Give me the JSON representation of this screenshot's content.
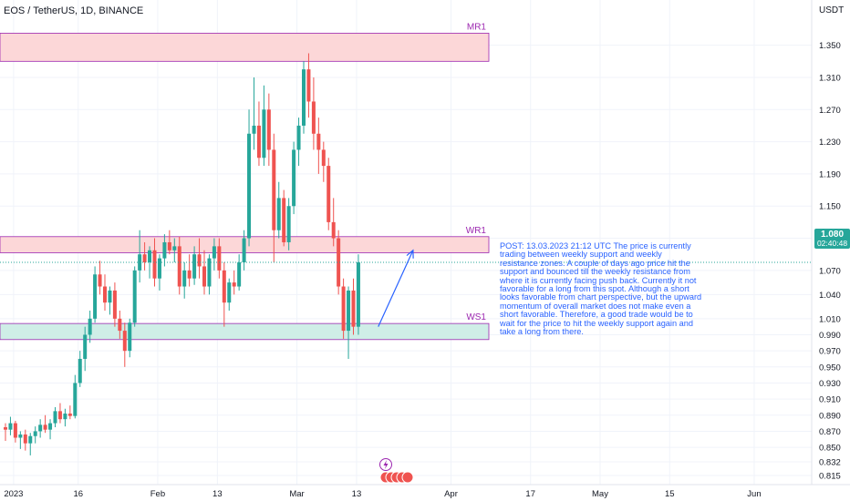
{
  "header": {
    "title": "EOS / TetherUS, 1D, BINANCE",
    "currency": "USDT"
  },
  "price_badge": {
    "price": "1.080",
    "countdown": "02:40:48"
  },
  "annotation_text": "POST: 13.03.2023 21:12 UTC The price is currently trading between weekly support and weekly resistance zones. A couple of days ago price hit the support and bounced till the weekly resistance from where it is currently facing push back. Currently it not favorable for a long from this spot. Although a short looks favorable from chart perspective, but the upward momentum of overall market does not make even a short favorable. Therefore, a good trade would be to wait for the price to hit the weekly support again and take a long from there.",
  "colors": {
    "up": "#26a69a",
    "down": "#ef5350",
    "resistance_fill": "#fcd7d8",
    "support_fill": "#cfeee7",
    "zone_border": "#9c27b0",
    "annotation": "#2962ff"
  },
  "icons": [
    "lightning-icon",
    "flags-icon"
  ],
  "chart_data": {
    "type": "candlestick",
    "title": "EOS / TetherUS, 1D, BINANCE",
    "y_unit": "USDT",
    "y_range": [
      0.805,
      1.385
    ],
    "y_ticks": [
      "1.350",
      "1.310",
      "1.270",
      "1.230",
      "1.190",
      "1.150",
      "1.110",
      "1.070",
      "1.040",
      "1.010",
      "0.990",
      "0.970",
      "0.950",
      "0.930",
      "0.910",
      "0.890",
      "0.870",
      "0.850",
      "0.832",
      "0.815"
    ],
    "x_ticks": [
      {
        "label": "2023",
        "index": 2
      },
      {
        "label": "16",
        "index": 15
      },
      {
        "label": "Feb",
        "index": 31
      },
      {
        "label": "13",
        "index": 43
      },
      {
        "label": "Mar",
        "index": 59
      },
      {
        "label": "13",
        "index": 71
      },
      {
        "label": "Apr",
        "index": 90
      },
      {
        "label": "17",
        "index": 106
      },
      {
        "label": "May",
        "index": 120
      },
      {
        "label": "15",
        "index": 134
      },
      {
        "label": "Jun",
        "index": 151
      }
    ],
    "zones": [
      {
        "label": "MR1",
        "high": 1.365,
        "low": 1.33,
        "kind": "resistance"
      },
      {
        "label": "WR1",
        "high": 1.112,
        "low": 1.092,
        "kind": "resistance"
      },
      {
        "label": "WS1",
        "high": 1.004,
        "low": 0.984,
        "kind": "support"
      }
    ],
    "current_price": 1.08,
    "projection_arrow": {
      "from": {
        "index": 75,
        "price": 1.0
      },
      "to": {
        "index": 82,
        "price": 1.095
      }
    },
    "candles": [
      {
        "o": 0.875,
        "h": 0.88,
        "l": 0.858,
        "c": 0.872
      },
      {
        "o": 0.872,
        "h": 0.888,
        "l": 0.865,
        "c": 0.88
      },
      {
        "o": 0.88,
        "h": 0.883,
        "l": 0.856,
        "c": 0.862
      },
      {
        "o": 0.862,
        "h": 0.87,
        "l": 0.848,
        "c": 0.866
      },
      {
        "o": 0.866,
        "h": 0.872,
        "l": 0.846,
        "c": 0.855
      },
      {
        "o": 0.855,
        "h": 0.868,
        "l": 0.84,
        "c": 0.864
      },
      {
        "o": 0.864,
        "h": 0.876,
        "l": 0.855,
        "c": 0.87
      },
      {
        "o": 0.87,
        "h": 0.885,
        "l": 0.862,
        "c": 0.878
      },
      {
        "o": 0.878,
        "h": 0.89,
        "l": 0.868,
        "c": 0.872
      },
      {
        "o": 0.872,
        "h": 0.885,
        "l": 0.86,
        "c": 0.88
      },
      {
        "o": 0.88,
        "h": 0.9,
        "l": 0.875,
        "c": 0.895
      },
      {
        "o": 0.895,
        "h": 0.905,
        "l": 0.88,
        "c": 0.885
      },
      {
        "o": 0.885,
        "h": 0.898,
        "l": 0.876,
        "c": 0.892
      },
      {
        "o": 0.892,
        "h": 0.902,
        "l": 0.885,
        "c": 0.889
      },
      {
        "o": 0.889,
        "h": 0.94,
        "l": 0.886,
        "c": 0.93
      },
      {
        "o": 0.93,
        "h": 0.97,
        "l": 0.925,
        "c": 0.96
      },
      {
        "o": 0.96,
        "h": 1.0,
        "l": 0.945,
        "c": 0.99
      },
      {
        "o": 0.99,
        "h": 1.02,
        "l": 0.98,
        "c": 1.01
      },
      {
        "o": 1.01,
        "h": 1.075,
        "l": 1.005,
        "c": 1.065
      },
      {
        "o": 1.065,
        "h": 1.082,
        "l": 1.04,
        "c": 1.05
      },
      {
        "o": 1.05,
        "h": 1.065,
        "l": 1.02,
        "c": 1.03
      },
      {
        "o": 1.03,
        "h": 1.05,
        "l": 1.015,
        "c": 1.045
      },
      {
        "o": 1.045,
        "h": 1.055,
        "l": 1.0,
        "c": 1.01
      },
      {
        "o": 1.01,
        "h": 1.02,
        "l": 0.985,
        "c": 0.995
      },
      {
        "o": 0.995,
        "h": 1.005,
        "l": 0.95,
        "c": 0.97
      },
      {
        "o": 0.97,
        "h": 1.01,
        "l": 0.962,
        "c": 1.005
      },
      {
        "o": 1.005,
        "h": 1.075,
        "l": 1.0,
        "c": 1.07
      },
      {
        "o": 1.07,
        "h": 1.12,
        "l": 1.055,
        "c": 1.09
      },
      {
        "o": 1.09,
        "h": 1.105,
        "l": 1.07,
        "c": 1.08
      },
      {
        "o": 1.08,
        "h": 1.1,
        "l": 1.06,
        "c": 1.095
      },
      {
        "o": 1.095,
        "h": 1.11,
        "l": 1.05,
        "c": 1.06
      },
      {
        "o": 1.06,
        "h": 1.09,
        "l": 1.045,
        "c": 1.085
      },
      {
        "o": 1.085,
        "h": 1.115,
        "l": 1.075,
        "c": 1.105
      },
      {
        "o": 1.105,
        "h": 1.12,
        "l": 1.09,
        "c": 1.095
      },
      {
        "o": 1.095,
        "h": 1.11,
        "l": 1.08,
        "c": 1.1
      },
      {
        "o": 1.1,
        "h": 1.112,
        "l": 1.04,
        "c": 1.05
      },
      {
        "o": 1.05,
        "h": 1.08,
        "l": 1.035,
        "c": 1.07
      },
      {
        "o": 1.07,
        "h": 1.09,
        "l": 1.05,
        "c": 1.06
      },
      {
        "o": 1.06,
        "h": 1.1,
        "l": 1.052,
        "c": 1.09
      },
      {
        "o": 1.09,
        "h": 1.11,
        "l": 1.06,
        "c": 1.075
      },
      {
        "o": 1.075,
        "h": 1.095,
        "l": 1.04,
        "c": 1.05
      },
      {
        "o": 1.05,
        "h": 1.09,
        "l": 1.04,
        "c": 1.085
      },
      {
        "o": 1.085,
        "h": 1.11,
        "l": 1.07,
        "c": 1.1
      },
      {
        "o": 1.1,
        "h": 1.11,
        "l": 1.06,
        "c": 1.07
      },
      {
        "o": 1.07,
        "h": 1.08,
        "l": 1.0,
        "c": 1.03
      },
      {
        "o": 1.03,
        "h": 1.06,
        "l": 1.02,
        "c": 1.055
      },
      {
        "o": 1.055,
        "h": 1.07,
        "l": 1.04,
        "c": 1.05
      },
      {
        "o": 1.05,
        "h": 1.09,
        "l": 1.045,
        "c": 1.08
      },
      {
        "o": 1.08,
        "h": 1.12,
        "l": 1.07,
        "c": 1.11
      },
      {
        "o": 1.11,
        "h": 1.27,
        "l": 1.1,
        "c": 1.24
      },
      {
        "o": 1.24,
        "h": 1.31,
        "l": 1.22,
        "c": 1.25
      },
      {
        "o": 1.25,
        "h": 1.28,
        "l": 1.2,
        "c": 1.21
      },
      {
        "o": 1.21,
        "h": 1.3,
        "l": 1.2,
        "c": 1.27
      },
      {
        "o": 1.27,
        "h": 1.29,
        "l": 1.2,
        "c": 1.22
      },
      {
        "o": 1.22,
        "h": 1.24,
        "l": 1.08,
        "c": 1.12
      },
      {
        "o": 1.12,
        "h": 1.18,
        "l": 1.11,
        "c": 1.16
      },
      {
        "o": 1.16,
        "h": 1.17,
        "l": 1.1,
        "c": 1.105
      },
      {
        "o": 1.105,
        "h": 1.16,
        "l": 1.095,
        "c": 1.15
      },
      {
        "o": 1.15,
        "h": 1.23,
        "l": 1.14,
        "c": 1.22
      },
      {
        "o": 1.22,
        "h": 1.26,
        "l": 1.2,
        "c": 1.25
      },
      {
        "o": 1.25,
        "h": 1.33,
        "l": 1.24,
        "c": 1.32
      },
      {
        "o": 1.32,
        "h": 1.34,
        "l": 1.26,
        "c": 1.28
      },
      {
        "o": 1.28,
        "h": 1.31,
        "l": 1.22,
        "c": 1.24
      },
      {
        "o": 1.24,
        "h": 1.26,
        "l": 1.19,
        "c": 1.22
      },
      {
        "o": 1.22,
        "h": 1.23,
        "l": 1.18,
        "c": 1.2
      },
      {
        "o": 1.2,
        "h": 1.21,
        "l": 1.12,
        "c": 1.13
      },
      {
        "o": 1.13,
        "h": 1.16,
        "l": 1.1,
        "c": 1.11
      },
      {
        "o": 1.11,
        "h": 1.12,
        "l": 1.04,
        "c": 1.05
      },
      {
        "o": 1.05,
        "h": 1.06,
        "l": 0.985,
        "c": 0.995
      },
      {
        "o": 0.995,
        "h": 1.05,
        "l": 0.96,
        "c": 1.045
      },
      {
        "o": 1.045,
        "h": 1.06,
        "l": 0.99,
        "c": 1.0
      },
      {
        "o": 1.0,
        "h": 1.09,
        "l": 0.99,
        "c": 1.08
      }
    ]
  }
}
